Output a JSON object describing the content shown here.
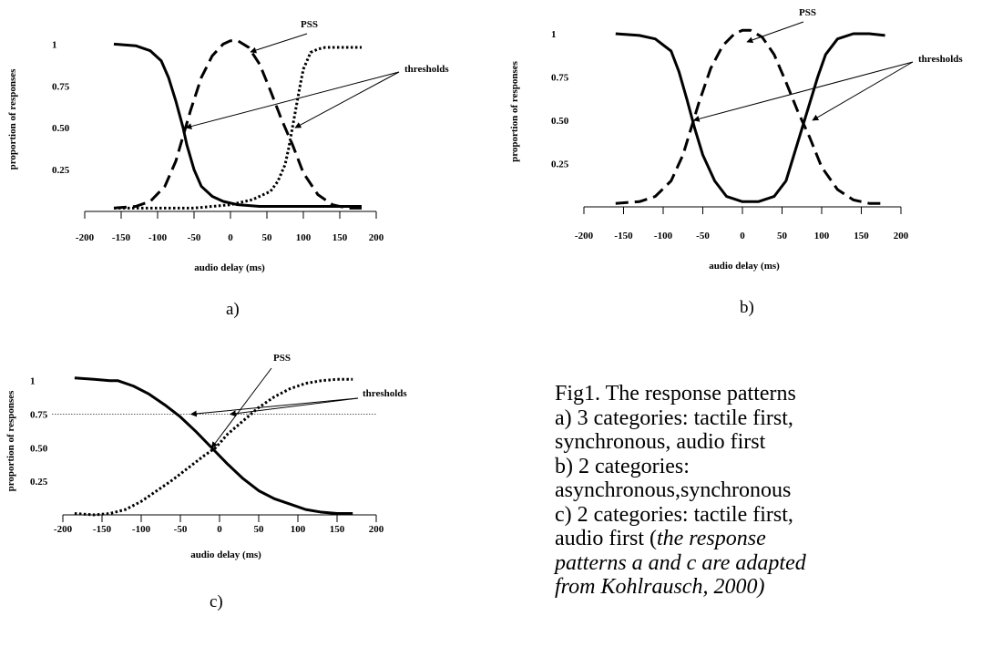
{
  "chart_data": [
    {
      "type": "line",
      "panel_label": "a)",
      "xlabel": "audio delay (ms)",
      "ylabel": "proportion of responses",
      "x_ticks": [
        -200,
        -150,
        -100,
        -50,
        0,
        50,
        100,
        150,
        200
      ],
      "y_ticks": [
        "1",
        "0.75",
        "0.50",
        "0.25"
      ],
      "y_tick_values": [
        1,
        0.75,
        0.5,
        0.25
      ],
      "xlim": [
        -200,
        200
      ],
      "ylim": [
        0,
        1.1
      ],
      "series": [
        {
          "style": "solid",
          "x": [
            -160,
            -130,
            -110,
            -95,
            -85,
            -75,
            -70,
            -65,
            -60,
            -50,
            -40,
            -25,
            -10,
            10,
            40,
            80,
            120,
            150,
            180
          ],
          "y": [
            1.0,
            0.99,
            0.96,
            0.9,
            0.8,
            0.66,
            0.58,
            0.5,
            0.4,
            0.25,
            0.15,
            0.09,
            0.06,
            0.04,
            0.03,
            0.03,
            0.03,
            0.03,
            0.03
          ]
        },
        {
          "style": "dashed",
          "x": [
            -160,
            -130,
            -110,
            -90,
            -75,
            -65,
            -55,
            -40,
            -25,
            -10,
            0,
            10,
            25,
            40,
            55,
            70,
            85,
            100,
            120,
            140,
            160,
            180
          ],
          "y": [
            0.02,
            0.03,
            0.06,
            0.15,
            0.3,
            0.45,
            0.6,
            0.8,
            0.93,
            1.0,
            1.02,
            1.02,
            0.98,
            0.88,
            0.72,
            0.55,
            0.4,
            0.23,
            0.1,
            0.04,
            0.02,
            0.02
          ]
        },
        {
          "style": "dotted",
          "x": [
            -160,
            -100,
            -50,
            0,
            30,
            55,
            65,
            75,
            80,
            85,
            90,
            95,
            100,
            110,
            120,
            130,
            150,
            180
          ],
          "y": [
            0.02,
            0.02,
            0.02,
            0.04,
            0.07,
            0.12,
            0.18,
            0.28,
            0.38,
            0.5,
            0.62,
            0.74,
            0.85,
            0.95,
            0.97,
            0.98,
            0.98,
            0.98
          ]
        }
      ],
      "annotations": [
        {
          "text": "PSS",
          "x": 0,
          "y": 1.03
        },
        {
          "text": "thresholds",
          "targets": [
            [
              -65,
              0.5
            ],
            [
              85,
              0.5
            ]
          ]
        }
      ]
    },
    {
      "type": "line",
      "panel_label": "b)",
      "xlabel": "audio delay (ms)",
      "ylabel": "proportion of responses",
      "x_ticks": [
        -200,
        -150,
        -100,
        -50,
        0,
        50,
        100,
        150,
        200
      ],
      "y_ticks": [
        "1",
        "0.75",
        "0.50",
        "0.25"
      ],
      "y_tick_values": [
        1,
        0.75,
        0.5,
        0.25
      ],
      "xlim": [
        -200,
        200
      ],
      "ylim": [
        0,
        1.1
      ],
      "series": [
        {
          "style": "solid",
          "x": [
            -160,
            -130,
            -110,
            -90,
            -80,
            -70,
            -60,
            -50,
            -35,
            -20,
            0,
            20,
            40,
            55,
            65,
            75,
            85,
            95,
            105,
            120,
            140,
            160,
            180
          ],
          "y": [
            1.0,
            0.99,
            0.97,
            0.9,
            0.78,
            0.62,
            0.45,
            0.3,
            0.15,
            0.06,
            0.03,
            0.03,
            0.06,
            0.15,
            0.3,
            0.45,
            0.6,
            0.75,
            0.88,
            0.97,
            1.0,
            1.0,
            0.99
          ]
        },
        {
          "style": "dashed",
          "x": [
            -160,
            -130,
            -110,
            -90,
            -75,
            -65,
            -55,
            -40,
            -25,
            -10,
            0,
            10,
            25,
            40,
            55,
            70,
            85,
            100,
            120,
            140,
            160,
            180
          ],
          "y": [
            0.02,
            0.03,
            0.06,
            0.15,
            0.3,
            0.45,
            0.6,
            0.8,
            0.93,
            1.0,
            1.02,
            1.02,
            0.98,
            0.88,
            0.72,
            0.55,
            0.4,
            0.23,
            0.1,
            0.04,
            0.02,
            0.02
          ]
        }
      ],
      "annotations": [
        {
          "text": "PSS",
          "x": 0,
          "y": 1.03
        },
        {
          "text": "thresholds",
          "targets": [
            [
              -65,
              0.5
            ],
            [
              85,
              0.5
            ]
          ]
        }
      ]
    },
    {
      "type": "line",
      "panel_label": "c)",
      "xlabel": "audio delay (ms)",
      "ylabel": "proportion of responses",
      "x_ticks": [
        -200,
        -150,
        -100,
        -50,
        0,
        50,
        100,
        150,
        200
      ],
      "y_ticks": [
        "1",
        "0.75",
        "0.50",
        "0.25"
      ],
      "y_tick_values": [
        1,
        0.75,
        0.5,
        0.25
      ],
      "xlim": [
        -200,
        200
      ],
      "ylim": [
        0,
        1.1
      ],
      "reference_line": {
        "y": 0.75,
        "style": "dotted"
      },
      "series": [
        {
          "style": "solid",
          "x": [
            -185,
            -160,
            -140,
            -130,
            -110,
            -90,
            -70,
            -50,
            -30,
            -10,
            10,
            30,
            50,
            70,
            90,
            110,
            130,
            150,
            170
          ],
          "y": [
            1.02,
            1.01,
            1.0,
            1.0,
            0.96,
            0.9,
            0.82,
            0.73,
            0.62,
            0.5,
            0.38,
            0.27,
            0.18,
            0.12,
            0.08,
            0.04,
            0.02,
            0.01,
            0.01
          ]
        },
        {
          "style": "dotted",
          "x": [
            -185,
            -160,
            -140,
            -120,
            -100,
            -80,
            -60,
            -40,
            -20,
            -5,
            10,
            30,
            50,
            70,
            90,
            110,
            130,
            150,
            170
          ],
          "y": [
            0.01,
            0.0,
            0.01,
            0.04,
            0.1,
            0.18,
            0.26,
            0.35,
            0.44,
            0.5,
            0.6,
            0.7,
            0.8,
            0.88,
            0.94,
            0.98,
            1.0,
            1.01,
            1.01
          ]
        }
      ],
      "annotations": [
        {
          "text": "PSS",
          "target": [
            -10,
            0.5
          ]
        },
        {
          "text": "thresholds",
          "targets": [
            [
              -40,
              0.75
            ],
            [
              10,
              0.75
            ]
          ]
        }
      ]
    }
  ],
  "caption": {
    "lines": [
      "Fig1. The response patterns",
      "a) 3 categories: tactile first,",
      "synchronous, audio first",
      "b) 2 categories:",
      "asynchronous,synchronous",
      "c) 2 categories: tactile first,"
    ],
    "line7_normal": "audio first (",
    "line7_italic": "the response",
    "line8_italic": "patterns a and c are adapted",
    "line9_italic": "from Kohlrausch, 2000)"
  }
}
